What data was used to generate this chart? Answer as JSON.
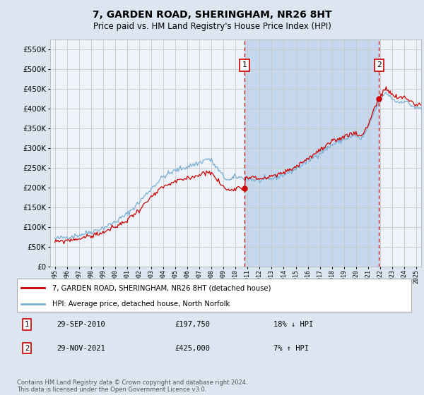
{
  "title": "7, GARDEN ROAD, SHERINGHAM, NR26 8HT",
  "subtitle": "Price paid vs. HM Land Registry's House Price Index (HPI)",
  "legend_line1": "7, GARDEN ROAD, SHERINGHAM, NR26 8HT (detached house)",
  "legend_line2": "HPI: Average price, detached house, North Norfolk",
  "annotation1_label": "1",
  "annotation1_date": "29-SEP-2010",
  "annotation1_price": "£197,750",
  "annotation1_hpi": "18% ↓ HPI",
  "annotation1_year": 2010.75,
  "annotation1_value": 197750,
  "annotation2_label": "2",
  "annotation2_date": "29-NOV-2021",
  "annotation2_price": "£425,000",
  "annotation2_hpi": "7% ↑ HPI",
  "annotation2_year": 2021.917,
  "annotation2_value": 425000,
  "footer": "Contains HM Land Registry data © Crown copyright and database right 2024.\nThis data is licensed under the Open Government Licence v3.0.",
  "hpi_color": "#7bafd4",
  "price_color": "#cc0000",
  "background_color": "#dce6f1",
  "shade_color": "#c5d8ee",
  "ylim_max": 575000,
  "xlim_start": 1994.6,
  "xlim_end": 2025.4
}
